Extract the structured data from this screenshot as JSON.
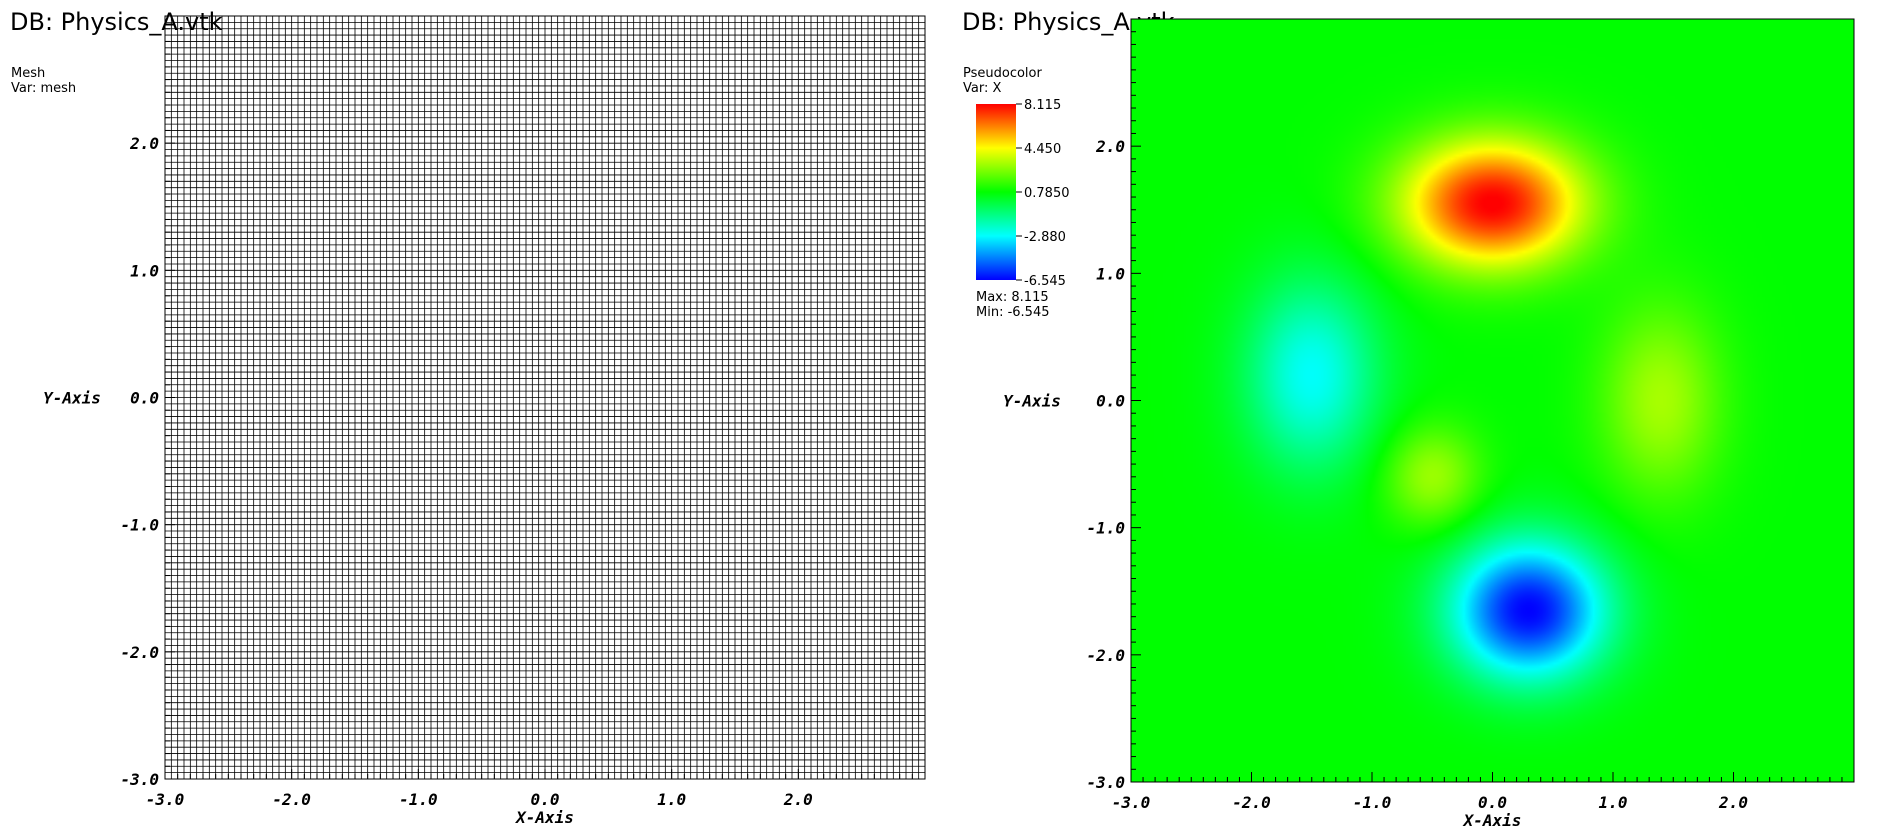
{
  "chart_data": [
    {
      "type": "mesh",
      "db_title": "DB: Physics_A.vtk",
      "plot_type": "Mesh",
      "var_label": "Var: mesh",
      "xlabel": "X-Axis",
      "ylabel": "Y-Axis",
      "xlim": [
        -3.0,
        3.0
      ],
      "ylim": [
        -3.0,
        3.0
      ],
      "x_ticks": [
        "-3.0",
        "-2.0",
        "-1.0",
        "0.0",
        "1.0",
        "2.0"
      ],
      "y_ticks": [
        "-3.0",
        "-2.0",
        "-1.0",
        "0.0",
        "1.0",
        "2.0"
      ],
      "x_tick_values": [
        -3,
        -2,
        -1,
        0,
        1,
        2
      ],
      "y_tick_values": [
        -3,
        -2,
        -1,
        0,
        1,
        2
      ],
      "mesh_cell_size": 0.05,
      "mesh_color": "#000000"
    },
    {
      "type": "heatmap",
      "db_title": "DB: Physics_A.vtk",
      "plot_type": "Pseudocolor",
      "var_label": "Var: X",
      "xlabel": "X-Axis",
      "ylabel": "Y-Axis",
      "xlim": [
        -3.0,
        3.0
      ],
      "ylim": [
        -3.0,
        3.0
      ],
      "x_ticks": [
        "-3.0",
        "-2.0",
        "-1.0",
        "0.0",
        "1.0",
        "2.0"
      ],
      "y_ticks": [
        "-3.0",
        "-2.0",
        "-1.0",
        "0.0",
        "1.0",
        "2.0"
      ],
      "x_tick_values": [
        -3,
        -2,
        -1,
        0,
        1,
        2
      ],
      "y_tick_values": [
        -3,
        -2,
        -1,
        0,
        1,
        2
      ],
      "legend_labels": [
        "8.115",
        "4.450",
        "0.7850",
        "-2.880",
        "-6.545"
      ],
      "max_label": "Max:  8.115",
      "min_label": "Min: -6.545",
      "value_range": [
        -6.545,
        8.115
      ],
      "colormap": [
        "#0000ff",
        "#00ffff",
        "#00ff00",
        "#ffff00",
        "#ff0000"
      ],
      "field_blobs": [
        {
          "x": 0.0,
          "y": 1.55,
          "peak": 7.4,
          "spread_x": 0.75,
          "spread_y": 0.5
        },
        {
          "x": 0.3,
          "y": -1.65,
          "peak": -7.3,
          "spread_x": 0.65,
          "spread_y": 0.55
        },
        {
          "x": -1.5,
          "y": 0.2,
          "peak": -3.6,
          "spread_x": 0.55,
          "spread_y": 0.75
        },
        {
          "x": 1.4,
          "y": 0.0,
          "peak": 2.4,
          "spread_x": 0.5,
          "spread_y": 0.75
        },
        {
          "x": -0.5,
          "y": -0.6,
          "peak": 2.3,
          "spread_x": 0.4,
          "spread_y": 0.4
        }
      ]
    }
  ]
}
